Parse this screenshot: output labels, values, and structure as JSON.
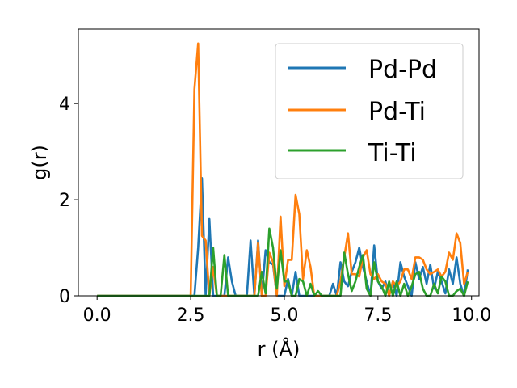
{
  "chart_data": {
    "type": "line",
    "xlabel": "r (Å)",
    "ylabel": "g(r)",
    "xlim": [
      -0.5,
      10.2
    ],
    "ylim": [
      0,
      5.55
    ],
    "xticks": [
      0.0,
      2.5,
      5.0,
      7.5,
      10.0
    ],
    "xtick_labels": [
      "0.0",
      "2.5",
      "5.0",
      "7.5",
      "10.0"
    ],
    "yticks": [
      0,
      2,
      4
    ],
    "ytick_labels": [
      "0",
      "2",
      "4"
    ],
    "grid": false,
    "legend": "top-right",
    "series": [
      {
        "name": "Pd-Pd",
        "color": "#1f77b4",
        "x": [
          0.0,
          2.5,
          2.6,
          2.7,
          2.8,
          2.9,
          3.0,
          3.1,
          3.2,
          3.3,
          3.4,
          3.5,
          3.6,
          3.7,
          3.8,
          3.9,
          4.0,
          4.1,
          4.2,
          4.3,
          4.4,
          4.5,
          4.6,
          4.7,
          4.8,
          4.9,
          5.0,
          5.1,
          5.2,
          5.3,
          5.4,
          5.5,
          5.6,
          5.7,
          5.8,
          5.9,
          6.0,
          6.1,
          6.2,
          6.3,
          6.4,
          6.5,
          6.6,
          6.7,
          6.8,
          6.9,
          7.0,
          7.1,
          7.2,
          7.3,
          7.4,
          7.5,
          7.6,
          7.7,
          7.8,
          7.9,
          8.0,
          8.1,
          8.2,
          8.3,
          8.4,
          8.5,
          8.6,
          8.7,
          8.8,
          8.9,
          9.0,
          9.1,
          9.2,
          9.3,
          9.4,
          9.5,
          9.6,
          9.7,
          9.8,
          9.9
        ],
        "values": [
          0,
          0,
          0,
          1.0,
          2.45,
          0,
          1.6,
          0.0,
          0,
          0.0,
          0,
          0.8,
          0.3,
          0,
          0,
          0,
          0,
          1.15,
          0.0,
          1.15,
          0.0,
          0.95,
          0.7,
          0.65,
          0,
          0.0,
          0.0,
          0.35,
          0,
          0.5,
          0,
          0,
          0,
          0,
          0,
          0,
          0,
          0,
          0,
          0.25,
          0,
          0.7,
          0.3,
          0.2,
          0.5,
          0.7,
          1.0,
          0.6,
          0.3,
          0.0,
          1.05,
          0.3,
          0.15,
          0.3,
          0.0,
          0.3,
          0.0,
          0.7,
          0.4,
          0.2,
          0.0,
          0.7,
          0.35,
          0.6,
          0.25,
          0.65,
          0.15,
          0.5,
          0.3,
          0.05,
          0.55,
          0.25,
          0.8,
          0.25,
          0.0,
          0.55
        ]
      },
      {
        "name": "Pd-Ti",
        "color": "#ff7f0e",
        "x": [
          0.0,
          2.5,
          2.6,
          2.7,
          2.8,
          2.9,
          3.0,
          3.1,
          3.2,
          3.3,
          3.4,
          3.5,
          3.6,
          3.7,
          3.8,
          3.9,
          4.0,
          4.1,
          4.2,
          4.3,
          4.4,
          4.5,
          4.6,
          4.7,
          4.8,
          4.9,
          5.0,
          5.1,
          5.2,
          5.3,
          5.4,
          5.5,
          5.6,
          5.7,
          5.8,
          5.9,
          6.0,
          6.1,
          6.2,
          6.3,
          6.4,
          6.5,
          6.6,
          6.7,
          6.8,
          6.9,
          7.0,
          7.1,
          7.2,
          7.3,
          7.4,
          7.5,
          7.6,
          7.7,
          7.8,
          7.9,
          8.0,
          8.1,
          8.2,
          8.3,
          8.4,
          8.5,
          8.6,
          8.7,
          8.8,
          8.9,
          9.0,
          9.1,
          9.2,
          9.3,
          9.4,
          9.5,
          9.6,
          9.7,
          9.8,
          9.9
        ],
        "values": [
          0,
          0,
          4.3,
          5.25,
          1.25,
          1.15,
          0.0,
          0.6,
          0.0,
          0,
          0,
          0,
          0,
          0,
          0,
          0,
          0,
          0,
          0.0,
          1.1,
          0.0,
          0.0,
          0.9,
          0.7,
          0.0,
          1.65,
          0.2,
          0.75,
          0.75,
          2.1,
          1.7,
          0.35,
          0.95,
          0.6,
          0.0,
          0.0,
          0.0,
          0.0,
          0.0,
          0.0,
          0.0,
          0.3,
          0.8,
          1.3,
          0.45,
          0.45,
          0.4,
          0.8,
          0.95,
          0.45,
          0.35,
          0.45,
          0.3,
          0.25,
          0.0,
          0.3,
          0.2,
          0.3,
          0.55,
          0.55,
          0.35,
          0.8,
          0.8,
          0.75,
          0.55,
          0.45,
          0.5,
          0.55,
          0.4,
          0.5,
          0.9,
          0.75,
          1.3,
          1.1,
          0.25,
          0.5
        ]
      },
      {
        "name": "Ti-Ti",
        "color": "#2ca02c",
        "x": [
          0.0,
          2.5,
          2.6,
          2.7,
          2.8,
          2.9,
          3.0,
          3.1,
          3.2,
          3.3,
          3.4,
          3.5,
          3.6,
          3.7,
          3.8,
          3.9,
          4.0,
          4.1,
          4.2,
          4.3,
          4.4,
          4.5,
          4.6,
          4.7,
          4.8,
          4.9,
          5.0,
          5.1,
          5.2,
          5.3,
          5.4,
          5.5,
          5.6,
          5.7,
          5.8,
          5.9,
          6.0,
          6.1,
          6.2,
          6.3,
          6.4,
          6.5,
          6.6,
          6.7,
          6.8,
          6.9,
          7.0,
          7.1,
          7.2,
          7.3,
          7.4,
          7.5,
          7.6,
          7.7,
          7.8,
          7.9,
          8.0,
          8.1,
          8.2,
          8.3,
          8.4,
          8.5,
          8.6,
          8.7,
          8.8,
          8.9,
          9.0,
          9.1,
          9.2,
          9.3,
          9.4,
          9.5,
          9.6,
          9.7,
          9.8,
          9.9
        ],
        "values": [
          0,
          0,
          0,
          0,
          0,
          0,
          0.0,
          1.0,
          0.0,
          0.0,
          0.85,
          0.0,
          0,
          0,
          0,
          0,
          0,
          0,
          0.0,
          0.0,
          0.5,
          0.05,
          1.4,
          1.0,
          0.15,
          0.95,
          0.3,
          0.3,
          0.0,
          0.0,
          0.35,
          0.3,
          0.0,
          0.25,
          0.0,
          0.1,
          0.0,
          0.0,
          0.0,
          0.0,
          0.0,
          0.0,
          0.9,
          0.45,
          0.1,
          0.3,
          0.6,
          0.85,
          0.15,
          0.0,
          0.7,
          0.3,
          0.2,
          0.0,
          0.3,
          0.0,
          0.3,
          0.0,
          0.25,
          0.0,
          0.2,
          0.45,
          0.5,
          0.15,
          0.0,
          0.0,
          0.25,
          0.05,
          0.4,
          0.3,
          0.0,
          0.0,
          0.1,
          0.15,
          0.0,
          0.3
        ]
      }
    ]
  }
}
